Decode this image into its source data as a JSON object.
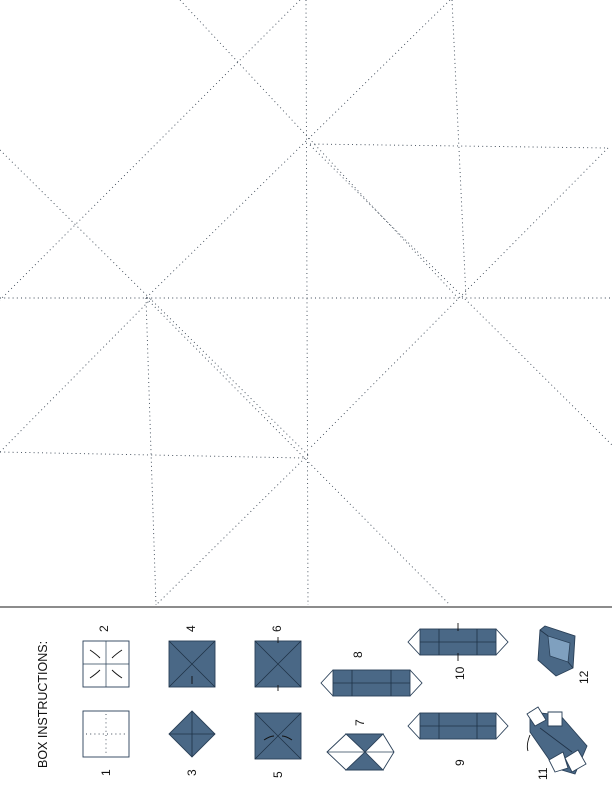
{
  "title": "BOX INSTRUCTIONS:",
  "steps": [
    "1",
    "2",
    "3",
    "4",
    "5",
    "6",
    "7",
    "8",
    "9",
    "10",
    "11",
    "12"
  ],
  "colors": {
    "paper": "#4a6886",
    "fold_line": "#3a4654",
    "cut_line": "#1a1a1a"
  }
}
